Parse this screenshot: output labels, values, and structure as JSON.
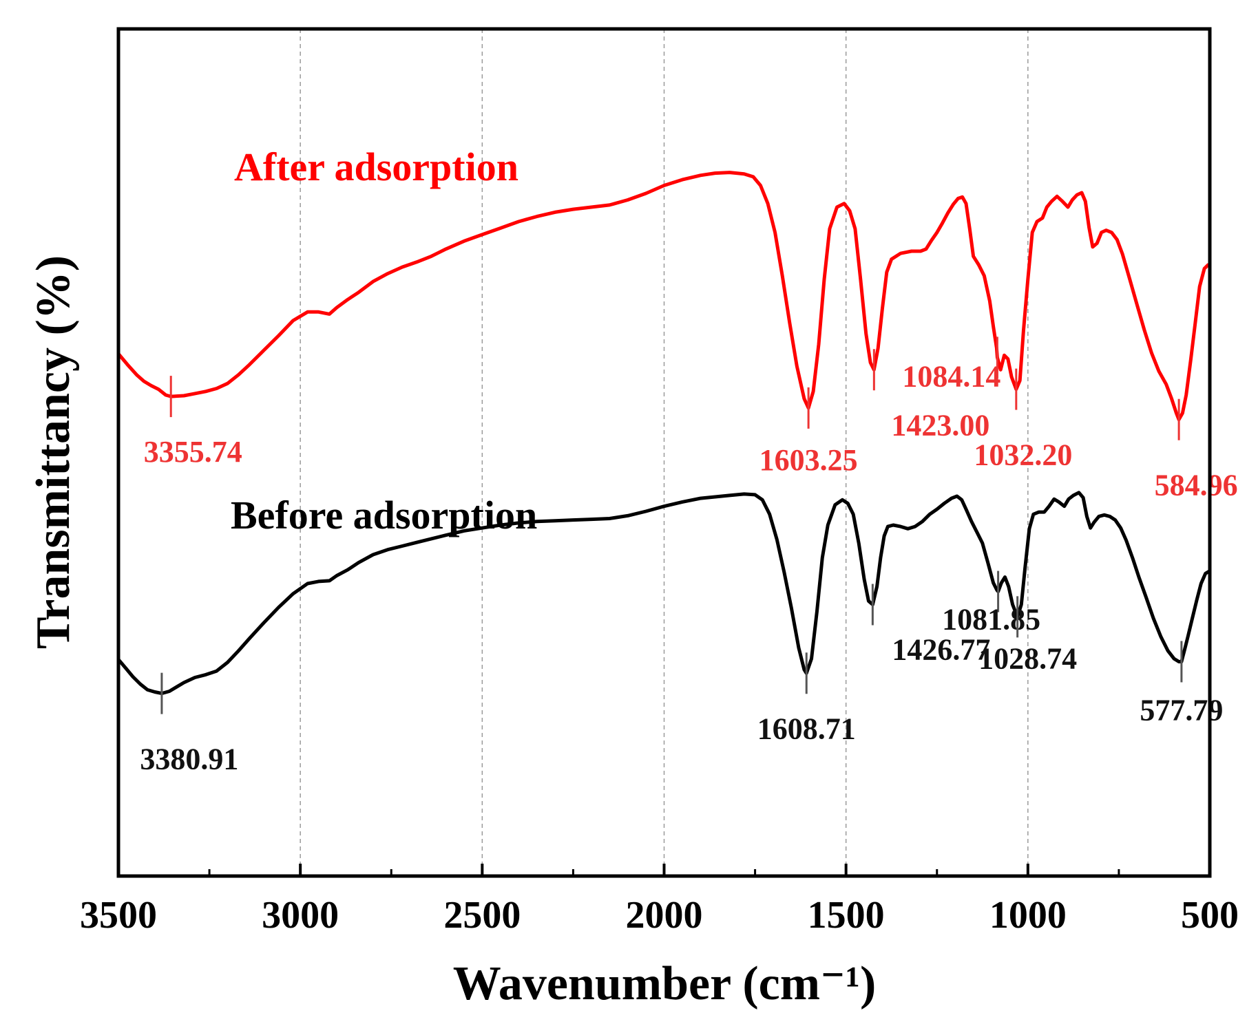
{
  "chart_data": {
    "type": "line",
    "title": "",
    "xlabel": "Wavenumber (cm⁻¹)",
    "ylabel": "Transmittancy (%)",
    "xlim": [
      3500,
      500
    ],
    "x_reversed": true,
    "yaxis_ticks": false,
    "ylim": [
      0,
      100
    ],
    "grid": "vertical-dashed",
    "gridlines_x": [
      3000,
      2500,
      2000,
      1500,
      1000
    ],
    "xticks": [
      3500,
      3000,
      2500,
      2000,
      1500,
      1000,
      500
    ],
    "xtick_labels": [
      "3500",
      "3000",
      "2500",
      "2000",
      "1500",
      "1000",
      "500"
    ],
    "series": [
      {
        "name": "After adsorption",
        "color": "#ff0000",
        "label_color": "#ee3333",
        "points": [
          [
            3500,
            67.7
          ],
          [
            3475,
            66.2
          ],
          [
            3450,
            64.8
          ],
          [
            3430,
            63.9
          ],
          [
            3410,
            63.3
          ],
          [
            3390,
            62.8
          ],
          [
            3370,
            62.0
          ],
          [
            3355.74,
            61.8
          ],
          [
            3320,
            61.9
          ],
          [
            3290,
            62.2
          ],
          [
            3260,
            62.5
          ],
          [
            3230,
            62.9
          ],
          [
            3200,
            63.6
          ],
          [
            3170,
            64.8
          ],
          [
            3140,
            66.2
          ],
          [
            3100,
            68.2
          ],
          [
            3060,
            70.2
          ],
          [
            3020,
            72.3
          ],
          [
            2980,
            73.5
          ],
          [
            2950,
            73.5
          ],
          [
            2920,
            73.2
          ],
          [
            2900,
            74.1
          ],
          [
            2870,
            75.2
          ],
          [
            2840,
            76.2
          ],
          [
            2800,
            77.7
          ],
          [
            2760,
            78.8
          ],
          [
            2720,
            79.7
          ],
          [
            2680,
            80.4
          ],
          [
            2640,
            81.2
          ],
          [
            2600,
            82.2
          ],
          [
            2550,
            83.3
          ],
          [
            2500,
            84.2
          ],
          [
            2450,
            85.1
          ],
          [
            2400,
            86.0
          ],
          [
            2350,
            86.7
          ],
          [
            2300,
            87.3
          ],
          [
            2250,
            87.7
          ],
          [
            2200,
            88.0
          ],
          [
            2150,
            88.3
          ],
          [
            2100,
            89.0
          ],
          [
            2050,
            89.9
          ],
          [
            2000,
            91.0
          ],
          [
            1950,
            91.8
          ],
          [
            1900,
            92.4
          ],
          [
            1860,
            92.7
          ],
          [
            1820,
            92.8
          ],
          [
            1780,
            92.6
          ],
          [
            1755,
            92.2
          ],
          [
            1735,
            91.0
          ],
          [
            1715,
            88.5
          ],
          [
            1695,
            84.5
          ],
          [
            1675,
            78.5
          ],
          [
            1655,
            72.0
          ],
          [
            1635,
            66.0
          ],
          [
            1615,
            61.5
          ],
          [
            1603.25,
            60.2
          ],
          [
            1590,
            62.5
          ],
          [
            1575,
            69.0
          ],
          [
            1560,
            78.0
          ],
          [
            1545,
            85.0
          ],
          [
            1525,
            88.0
          ],
          [
            1505,
            88.5
          ],
          [
            1490,
            87.5
          ],
          [
            1475,
            85.0
          ],
          [
            1460,
            78.0
          ],
          [
            1445,
            70.5
          ],
          [
            1433,
            66.5
          ],
          [
            1423,
            65.5
          ],
          [
            1412,
            68.5
          ],
          [
            1400,
            74.0
          ],
          [
            1388,
            79.0
          ],
          [
            1375,
            80.8
          ],
          [
            1350,
            81.6
          ],
          [
            1320,
            81.9
          ],
          [
            1295,
            81.9
          ],
          [
            1280,
            82.2
          ],
          [
            1265,
            83.4
          ],
          [
            1250,
            84.5
          ],
          [
            1235,
            85.8
          ],
          [
            1220,
            87.2
          ],
          [
            1205,
            88.4
          ],
          [
            1192,
            89.2
          ],
          [
            1180,
            89.4
          ],
          [
            1170,
            88.5
          ],
          [
            1160,
            85.0
          ],
          [
            1150,
            81.2
          ],
          [
            1135,
            80.0
          ],
          [
            1120,
            78.5
          ],
          [
            1105,
            75.0
          ],
          [
            1095,
            71.5
          ],
          [
            1086,
            68.5
          ],
          [
            1084.14,
            67.2
          ],
          [
            1075,
            65.5
          ],
          [
            1065,
            67.5
          ],
          [
            1055,
            67.0
          ],
          [
            1045,
            64.5
          ],
          [
            1032.2,
            62.8
          ],
          [
            1022,
            64.0
          ],
          [
            1012,
            71.0
          ],
          [
            1000,
            78.0
          ],
          [
            988,
            84.5
          ],
          [
            975,
            86.0
          ],
          [
            960,
            86.5
          ],
          [
            948,
            88.0
          ],
          [
            935,
            88.8
          ],
          [
            920,
            89.5
          ],
          [
            905,
            88.8
          ],
          [
            890,
            88.0
          ],
          [
            878,
            89.0
          ],
          [
            865,
            89.7
          ],
          [
            852,
            90.0
          ],
          [
            842,
            88.8
          ],
          [
            832,
            85.2
          ],
          [
            822,
            82.5
          ],
          [
            810,
            83.0
          ],
          [
            798,
            84.5
          ],
          [
            785,
            84.8
          ],
          [
            770,
            84.5
          ],
          [
            755,
            83.5
          ],
          [
            740,
            81.5
          ],
          [
            720,
            78.0
          ],
          [
            700,
            74.5
          ],
          [
            680,
            71.0
          ],
          [
            660,
            67.8
          ],
          [
            640,
            65.3
          ],
          [
            620,
            63.5
          ],
          [
            605,
            61.5
          ],
          [
            592,
            59.5
          ],
          [
            584.96,
            58.6
          ],
          [
            575,
            59.5
          ],
          [
            565,
            62.0
          ],
          [
            552,
            67.0
          ],
          [
            540,
            72.0
          ],
          [
            528,
            77.0
          ],
          [
            515,
            79.5
          ],
          [
            505,
            80.0
          ],
          [
            500,
            80.0
          ]
        ],
        "peaks": [
          {
            "x": 3355.74,
            "label": "3355.74"
          },
          {
            "x": 1603.25,
            "label": "1603.25"
          },
          {
            "x": 1423.0,
            "label": "1423.00"
          },
          {
            "x": 1084.14,
            "label": "1084.14"
          },
          {
            "x": 1032.2,
            "label": "1032.20"
          },
          {
            "x": 584.96,
            "label": "584.96"
          }
        ]
      },
      {
        "name": "Before adsorption",
        "color": "#000000",
        "label_color": "#111111",
        "points": [
          [
            3500,
            25.4
          ],
          [
            3480,
            24.2
          ],
          [
            3460,
            23.0
          ],
          [
            3440,
            22.0
          ],
          [
            3420,
            21.2
          ],
          [
            3400,
            20.9
          ],
          [
            3380.91,
            20.7
          ],
          [
            3360,
            21.0
          ],
          [
            3340,
            21.6
          ],
          [
            3320,
            22.2
          ],
          [
            3290,
            22.9
          ],
          [
            3260,
            23.3
          ],
          [
            3230,
            23.8
          ],
          [
            3200,
            25.0
          ],
          [
            3170,
            26.6
          ],
          [
            3140,
            28.3
          ],
          [
            3100,
            30.5
          ],
          [
            3060,
            32.6
          ],
          [
            3020,
            34.5
          ],
          [
            2980,
            35.9
          ],
          [
            2950,
            36.2
          ],
          [
            2920,
            36.3
          ],
          [
            2900,
            37.0
          ],
          [
            2870,
            37.8
          ],
          [
            2840,
            38.8
          ],
          [
            2800,
            39.9
          ],
          [
            2760,
            40.6
          ],
          [
            2720,
            41.1
          ],
          [
            2680,
            41.6
          ],
          [
            2640,
            42.1
          ],
          [
            2600,
            42.6
          ],
          [
            2550,
            43.2
          ],
          [
            2500,
            43.6
          ],
          [
            2450,
            44.0
          ],
          [
            2400,
            44.3
          ],
          [
            2350,
            44.5
          ],
          [
            2300,
            44.6
          ],
          [
            2250,
            44.7
          ],
          [
            2200,
            44.8
          ],
          [
            2150,
            44.9
          ],
          [
            2100,
            45.3
          ],
          [
            2050,
            45.9
          ],
          [
            2000,
            46.6
          ],
          [
            1950,
            47.2
          ],
          [
            1900,
            47.7
          ],
          [
            1860,
            47.9
          ],
          [
            1820,
            48.1
          ],
          [
            1780,
            48.3
          ],
          [
            1750,
            48.2
          ],
          [
            1730,
            47.5
          ],
          [
            1710,
            45.5
          ],
          [
            1690,
            42.0
          ],
          [
            1670,
            37.5
          ],
          [
            1650,
            32.5
          ],
          [
            1630,
            27.0
          ],
          [
            1615,
            24.0
          ],
          [
            1608.71,
            23.5
          ],
          [
            1595,
            25.5
          ],
          [
            1580,
            32.0
          ],
          [
            1565,
            39.5
          ],
          [
            1550,
            44.0
          ],
          [
            1530,
            46.8
          ],
          [
            1510,
            47.5
          ],
          [
            1495,
            47.0
          ],
          [
            1480,
            45.5
          ],
          [
            1465,
            41.5
          ],
          [
            1450,
            36.5
          ],
          [
            1438,
            33.5
          ],
          [
            1426.77,
            33.0
          ],
          [
            1415,
            35.5
          ],
          [
            1405,
            39.5
          ],
          [
            1395,
            42.5
          ],
          [
            1385,
            43.8
          ],
          [
            1370,
            44.0
          ],
          [
            1350,
            43.8
          ],
          [
            1330,
            43.5
          ],
          [
            1310,
            43.8
          ],
          [
            1290,
            44.5
          ],
          [
            1270,
            45.5
          ],
          [
            1250,
            46.2
          ],
          [
            1230,
            47.0
          ],
          [
            1210,
            47.7
          ],
          [
            1195,
            48.0
          ],
          [
            1182,
            47.5
          ],
          [
            1170,
            46.2
          ],
          [
            1155,
            44.5
          ],
          [
            1140,
            43.0
          ],
          [
            1125,
            41.5
          ],
          [
            1110,
            38.8
          ],
          [
            1095,
            36.0
          ],
          [
            1085,
            35.0
          ],
          [
            1081.85,
            34.8
          ],
          [
            1073,
            36.0
          ],
          [
            1063,
            36.8
          ],
          [
            1053,
            35.5
          ],
          [
            1042,
            33.0
          ],
          [
            1028.74,
            31.3
          ],
          [
            1018,
            33.0
          ],
          [
            1008,
            38.0
          ],
          [
            996,
            43.5
          ],
          [
            985,
            45.5
          ],
          [
            970,
            45.8
          ],
          [
            955,
            45.8
          ],
          [
            942,
            46.6
          ],
          [
            928,
            47.6
          ],
          [
            915,
            47.2
          ],
          [
            900,
            46.6
          ],
          [
            888,
            47.6
          ],
          [
            875,
            48.1
          ],
          [
            860,
            48.5
          ],
          [
            848,
            47.8
          ],
          [
            838,
            45.2
          ],
          [
            828,
            43.6
          ],
          [
            818,
            44.4
          ],
          [
            805,
            45.2
          ],
          [
            790,
            45.4
          ],
          [
            775,
            45.2
          ],
          [
            760,
            44.7
          ],
          [
            745,
            43.6
          ],
          [
            730,
            41.9
          ],
          [
            712,
            39.4
          ],
          [
            695,
            36.8
          ],
          [
            675,
            34.0
          ],
          [
            655,
            31.1
          ],
          [
            635,
            28.6
          ],
          [
            615,
            26.6
          ],
          [
            598,
            25.5
          ],
          [
            585,
            25.1
          ],
          [
            577.79,
            25.1
          ],
          [
            570,
            26.6
          ],
          [
            560,
            28.6
          ],
          [
            548,
            31.1
          ],
          [
            536,
            33.6
          ],
          [
            524,
            35.9
          ],
          [
            512,
            37.3
          ],
          [
            502,
            37.6
          ],
          [
            500,
            37.6
          ]
        ],
        "peaks": [
          {
            "x": 3380.91,
            "label": "3380.91"
          },
          {
            "x": 1608.71,
            "label": "1608.71"
          },
          {
            "x": 1426.77,
            "label": "1426.77"
          },
          {
            "x": 1081.85,
            "label": "1081.85"
          },
          {
            "x": 1028.74,
            "label": "1028.74"
          },
          {
            "x": 577.79,
            "label": "577.79"
          }
        ]
      }
    ]
  }
}
